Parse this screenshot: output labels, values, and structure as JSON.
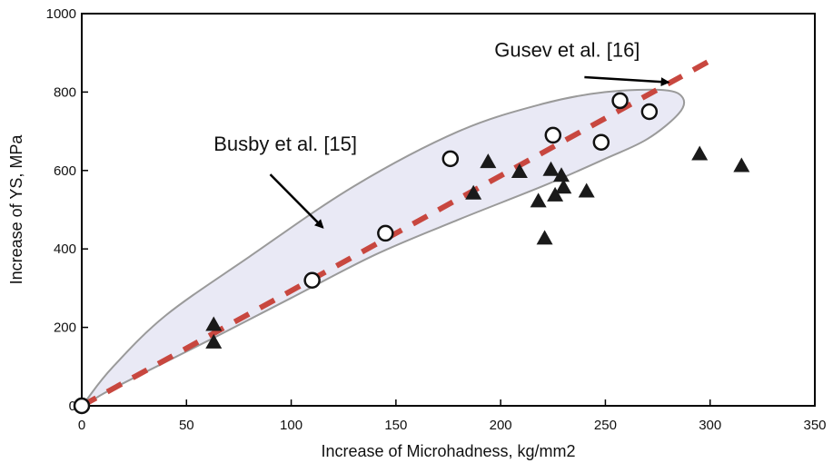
{
  "chart_data": {
    "type": "scatter",
    "xlabel": "Increase of Microhadness, kg/mm2",
    "ylabel": "Increase of YS, MPa",
    "xlim": [
      0,
      350
    ],
    "ylim": [
      0,
      1000
    ],
    "x_ticks": [
      "0",
      "50",
      "100",
      "150",
      "200",
      "250",
      "300",
      "350"
    ],
    "y_ticks": [
      "0",
      "200",
      "400",
      "600",
      "800",
      "1000"
    ],
    "grid": false,
    "series": [
      {
        "marker": "open-circle",
        "color": "#111111",
        "points": [
          [
            0,
            0
          ],
          [
            110,
            320
          ],
          [
            145,
            440
          ],
          [
            176,
            630
          ],
          [
            225,
            690
          ],
          [
            248,
            672
          ],
          [
            257,
            778
          ],
          [
            271,
            750
          ]
        ]
      },
      {
        "marker": "filled-triangle",
        "color": "#1a1a1a",
        "points": [
          [
            63,
            205
          ],
          [
            63,
            160
          ],
          [
            187,
            540
          ],
          [
            194,
            620
          ],
          [
            209,
            595
          ],
          [
            218,
            520
          ],
          [
            221,
            425
          ],
          [
            224,
            600
          ],
          [
            226,
            535
          ],
          [
            229,
            585
          ],
          [
            230,
            555
          ],
          [
            241,
            545
          ],
          [
            295,
            640
          ],
          [
            315,
            610
          ]
        ]
      },
      {
        "marker": "dashed-line",
        "color": "#c8473f",
        "points": [
          [
            0,
            0
          ],
          [
            300,
            880
          ]
        ]
      }
    ],
    "region": {
      "fill": "#e9e9f5",
      "stroke": "#9a9a9a",
      "outline": [
        [
          1,
          0
        ],
        [
          10,
          30
        ],
        [
          30,
          85
        ],
        [
          60,
          165
        ],
        [
          100,
          275
        ],
        [
          140,
          385
        ],
        [
          180,
          475
        ],
        [
          220,
          560
        ],
        [
          250,
          630
        ],
        [
          270,
          680
        ],
        [
          285,
          745
        ],
        [
          287,
          785
        ],
        [
          278,
          805
        ],
        [
          250,
          800
        ],
        [
          220,
          770
        ],
        [
          180,
          700
        ],
        [
          130,
          560
        ],
        [
          80,
          380
        ],
        [
          40,
          230
        ],
        [
          15,
          100
        ],
        [
          3,
          20
        ]
      ]
    },
    "annotations": [
      {
        "text": "Gusev et al. [16]",
        "text_at": [
          197,
          890
        ],
        "arrow_from": [
          240,
          838
        ],
        "arrow_to": [
          280,
          825
        ]
      },
      {
        "text": "Busby et al. [15]",
        "text_at": [
          63,
          650
        ],
        "arrow_from": [
          90,
          590
        ],
        "arrow_to": [
          115,
          455
        ]
      }
    ]
  }
}
